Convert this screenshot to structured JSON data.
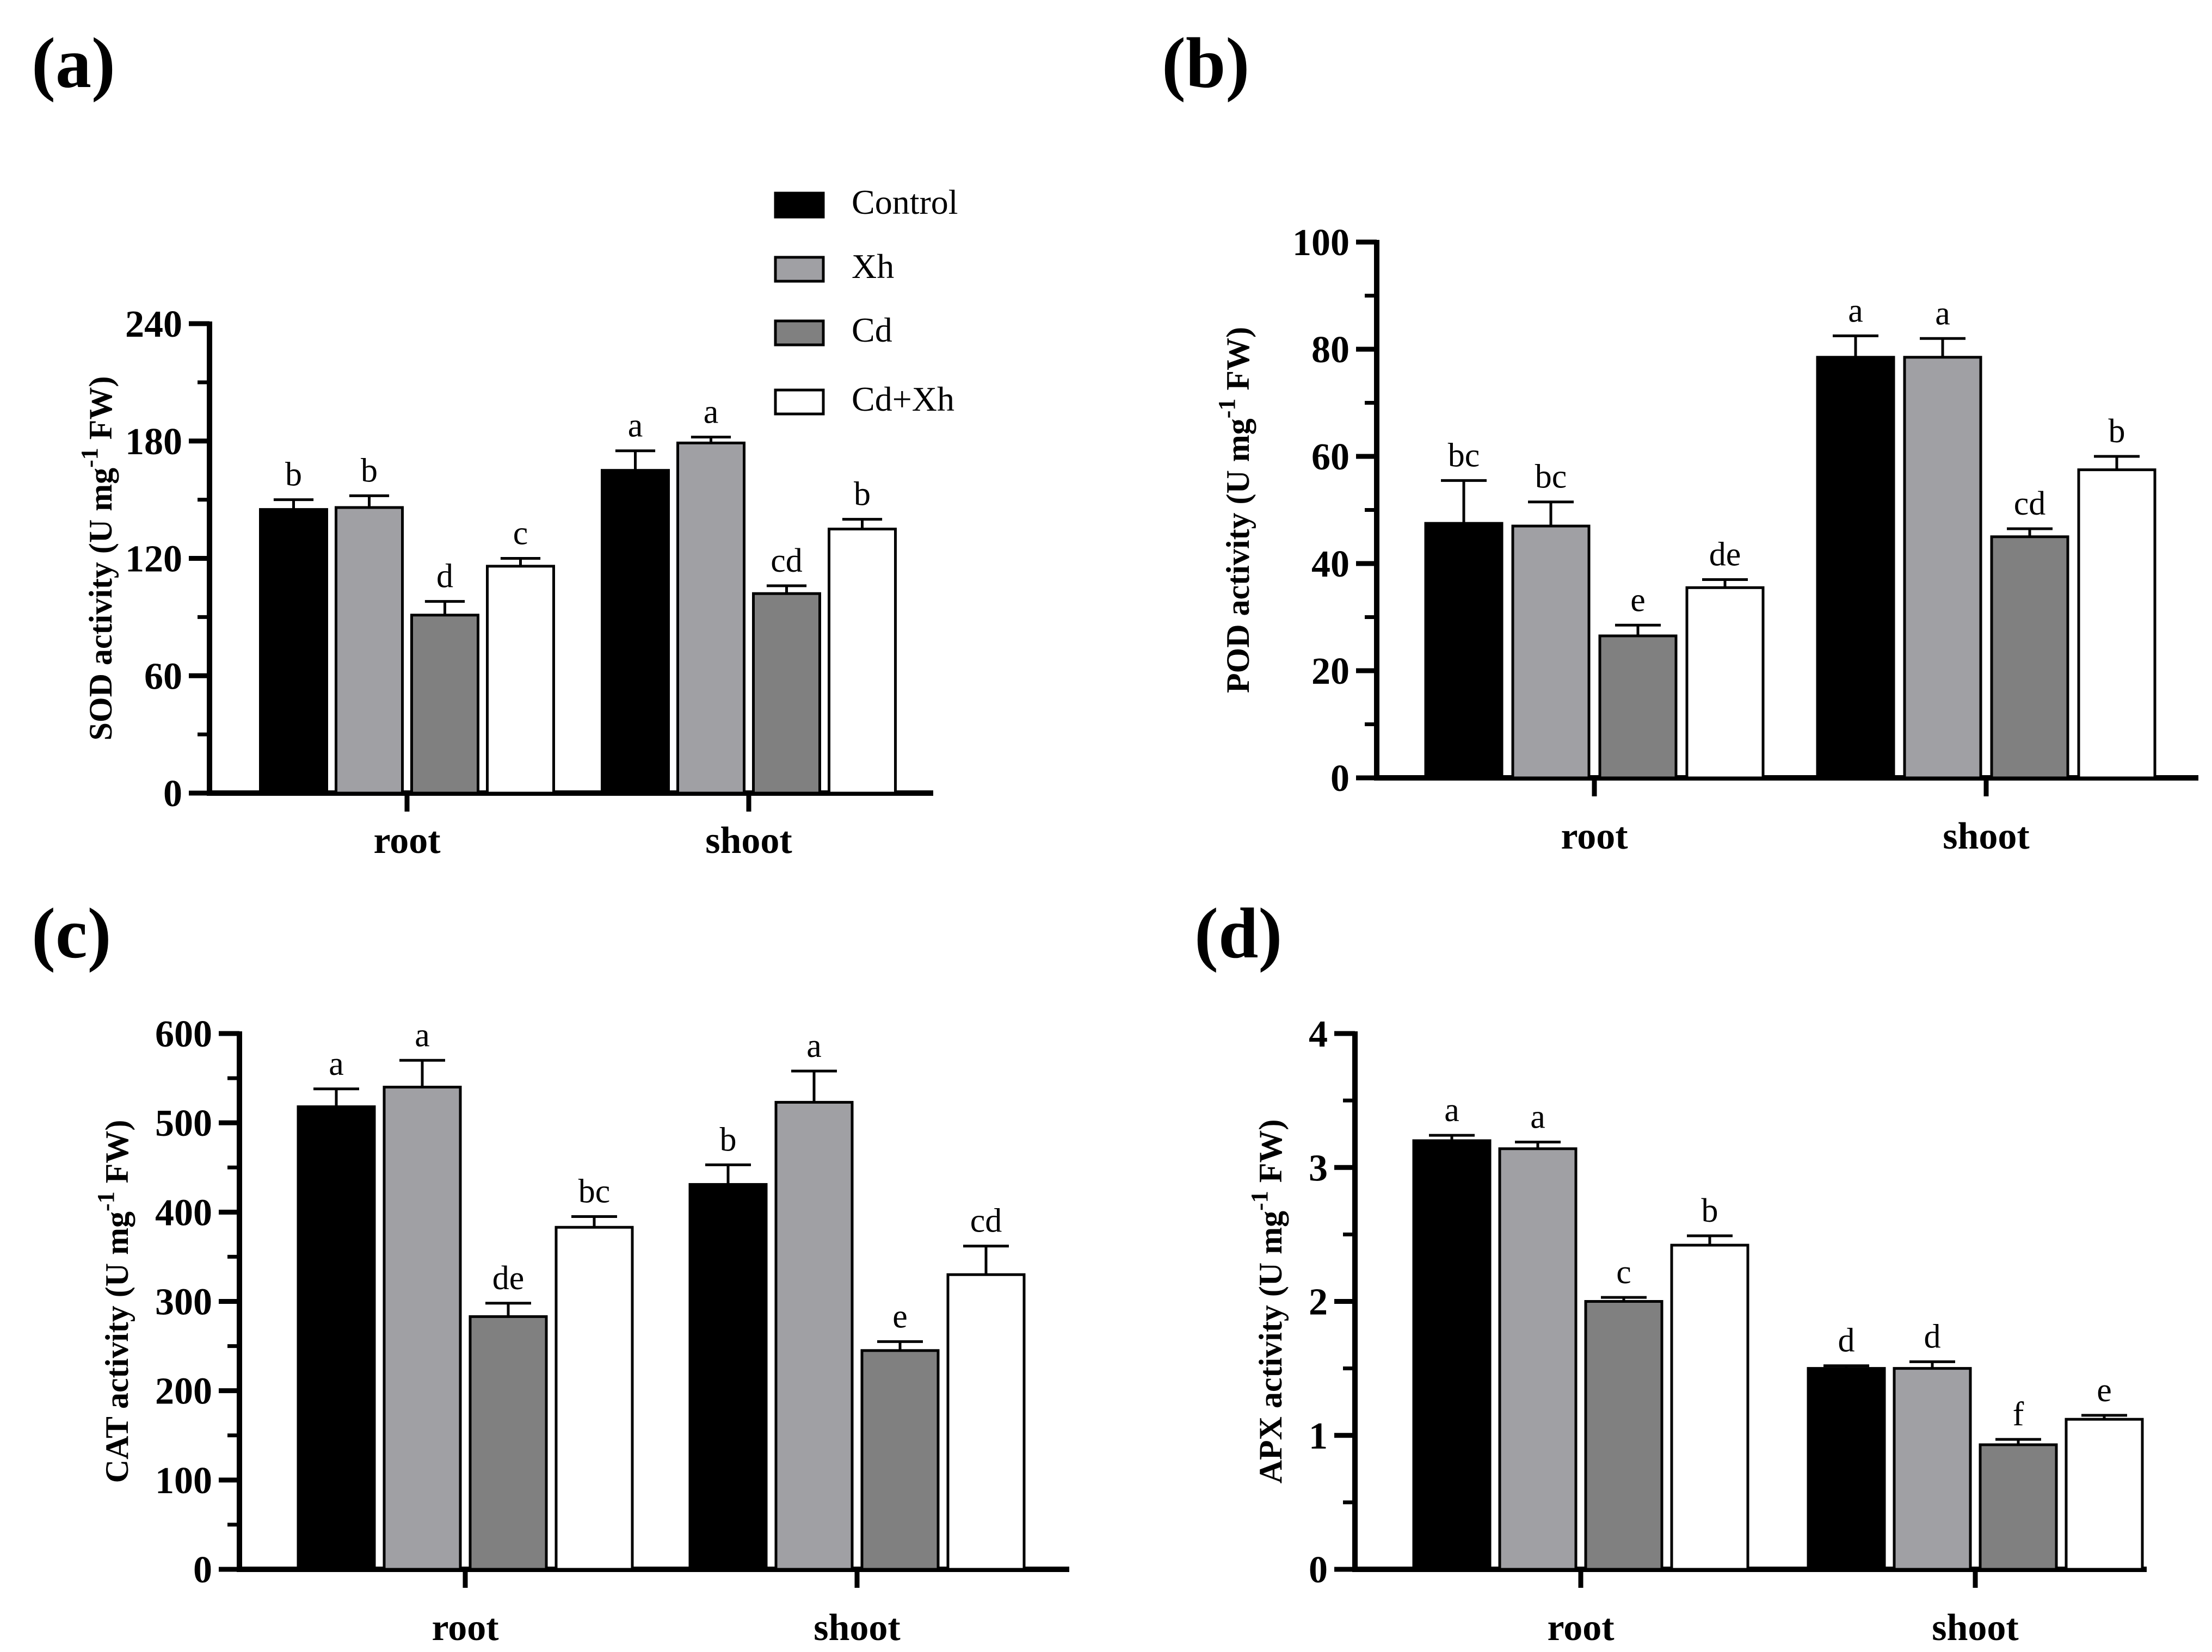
{
  "legend": {
    "items": [
      {
        "name": "Control",
        "color": "#000000"
      },
      {
        "name": "Xh",
        "color": "#a0a0a4"
      },
      {
        "name": "Cd",
        "color": "#808080"
      },
      {
        "name": "Cd+Xh",
        "color": "#ffffff"
      }
    ]
  },
  "chart_data": [
    {
      "panel": "(a)",
      "type": "bar",
      "categories": [
        "root",
        "shoot"
      ],
      "ylabel": "SOD activity (U mg-1 FW)",
      "ylabel_main": "SOD  activity (U mg",
      "ylabel_sup": "-1",
      "ylabel_tail": " FW)",
      "ylim": [
        0,
        240
      ],
      "yticks": [
        "0",
        "60",
        "120",
        "180",
        "240"
      ],
      "series": [
        {
          "name": "Control",
          "values": [
            145,
            165
          ],
          "errors": [
            5,
            10
          ],
          "letters": [
            "b",
            "a"
          ]
        },
        {
          "name": "Xh",
          "values": [
            146,
            179
          ],
          "errors": [
            6,
            3
          ],
          "letters": [
            "b",
            "a"
          ]
        },
        {
          "name": "Cd",
          "values": [
            91,
            102
          ],
          "errors": [
            7,
            4
          ],
          "letters": [
            "d",
            "cd"
          ]
        },
        {
          "name": "Cd+Xh",
          "values": [
            116,
            135
          ],
          "errors": [
            4,
            5
          ],
          "letters": [
            "c",
            "b"
          ]
        }
      ]
    },
    {
      "panel": "(b)",
      "type": "bar",
      "categories": [
        "root",
        "shoot"
      ],
      "ylabel": "POD activity (U mg-1 FW)",
      "ylabel_main": "POD  activity (U mg",
      "ylabel_sup": "-1",
      "ylabel_tail": " FW)",
      "ylim": [
        0,
        100
      ],
      "yticks": [
        "0",
        "20",
        "40",
        "60",
        "80",
        "100"
      ],
      "series": [
        {
          "name": "Control",
          "values": [
            47.5,
            78.5
          ],
          "errors": [
            8,
            4
          ],
          "letters": [
            "bc",
            "a"
          ]
        },
        {
          "name": "Xh",
          "values": [
            47,
            78.5
          ],
          "errors": [
            4.5,
            3.5
          ],
          "letters": [
            "bc",
            "a"
          ]
        },
        {
          "name": "Cd",
          "values": [
            26.5,
            45
          ],
          "errors": [
            2,
            1.5
          ],
          "letters": [
            "e",
            "cd"
          ]
        },
        {
          "name": "Cd+Xh",
          "values": [
            35.5,
            57.5
          ],
          "errors": [
            1.5,
            2.5
          ],
          "letters": [
            "de",
            "b"
          ]
        }
      ]
    },
    {
      "panel": "(c)",
      "type": "bar",
      "categories": [
        "root",
        "shoot"
      ],
      "ylabel": "CAT activity (U mg-1 FW)",
      "ylabel_main": "CAT activity (U mg",
      "ylabel_sup": "-1",
      "ylabel_tail": " FW)",
      "ylim": [
        0,
        600
      ],
      "yticks": [
        "0",
        "100",
        "200",
        "300",
        "400",
        "500",
        "600"
      ],
      "series": [
        {
          "name": "Control",
          "values": [
            518,
            431
          ],
          "errors": [
            20,
            22
          ],
          "letters": [
            "a",
            "b"
          ]
        },
        {
          "name": "Xh",
          "values": [
            540,
            523
          ],
          "errors": [
            30,
            35
          ],
          "letters": [
            "a",
            "a"
          ]
        },
        {
          "name": "Cd",
          "values": [
            283,
            245
          ],
          "errors": [
            15,
            10
          ],
          "letters": [
            "de",
            "e"
          ]
        },
        {
          "name": "Cd+Xh",
          "values": [
            383,
            330
          ],
          "errors": [
            12,
            32
          ],
          "letters": [
            "bc",
            "cd"
          ]
        }
      ]
    },
    {
      "panel": "(d)",
      "type": "bar",
      "categories": [
        "root",
        "shoot"
      ],
      "ylabel": "APX activity (U mg-1 FW)",
      "ylabel_main": "APX activity (U mg",
      "ylabel_sup": "-1",
      "ylabel_tail": " FW)",
      "ylim": [
        0,
        4
      ],
      "yticks": [
        "0",
        "1",
        "2",
        "3",
        "4"
      ],
      "series": [
        {
          "name": "Control",
          "values": [
            3.2,
            1.5
          ],
          "errors": [
            0.04,
            0.02
          ],
          "letters": [
            "a",
            "d"
          ]
        },
        {
          "name": "Xh",
          "values": [
            3.14,
            1.5
          ],
          "errors": [
            0.05,
            0.05
          ],
          "letters": [
            "a",
            "d"
          ]
        },
        {
          "name": "Cd",
          "values": [
            2.0,
            0.93
          ],
          "errors": [
            0.03,
            0.04
          ],
          "letters": [
            "c",
            "f"
          ]
        },
        {
          "name": "Cd+Xh",
          "values": [
            2.42,
            1.12
          ],
          "errors": [
            0.07,
            0.03
          ],
          "letters": [
            "b",
            "e"
          ]
        }
      ]
    }
  ]
}
